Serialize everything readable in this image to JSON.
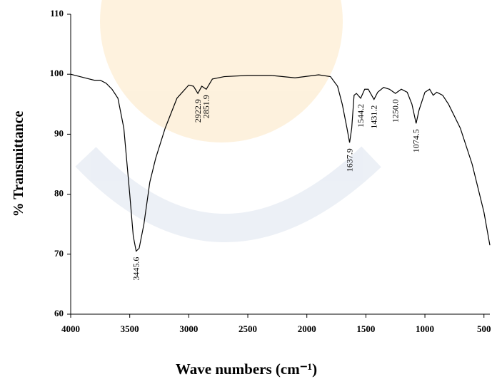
{
  "chart_data": {
    "type": "line",
    "xlabel": "Wave numbers (cm⁻¹)",
    "ylabel": "% Transmittance",
    "xlim": [
      4000,
      450
    ],
    "xticks": [
      4000,
      3500,
      3000,
      2500,
      2000,
      1500,
      1000,
      500
    ],
    "ylim": [
      60,
      110
    ],
    "yticks": [
      60,
      70,
      80,
      90,
      100,
      110
    ],
    "color": "#000000",
    "x": [
      4000,
      3900,
      3800,
      3750,
      3700,
      3650,
      3600,
      3550,
      3500,
      3470,
      3445.6,
      3420,
      3380,
      3330,
      3280,
      3200,
      3100,
      3000,
      2960,
      2922.9,
      2890,
      2851.9,
      2800,
      2700,
      2500,
      2300,
      2100,
      1900,
      1800,
      1740,
      1700,
      1660,
      1637.9,
      1620,
      1600,
      1580,
      1544.2,
      1510,
      1480,
      1431.2,
      1400,
      1350,
      1300,
      1250,
      1200,
      1150,
      1110,
      1074.5,
      1050,
      1000,
      960,
      930,
      900,
      850,
      800,
      700,
      600,
      500,
      450
    ],
    "values": [
      100.0,
      99.5,
      99.0,
      99.0,
      98.5,
      97.5,
      96,
      91,
      80,
      73,
      70.5,
      71,
      75,
      82,
      86,
      91,
      96,
      98.2,
      98,
      96.8,
      98,
      97.5,
      99.2,
      99.6,
      99.8,
      99.8,
      99.4,
      99.9,
      99.6,
      98,
      95,
      91,
      88.6,
      91,
      96.5,
      96.8,
      96.0,
      97.5,
      97.5,
      95.8,
      97,
      97.8,
      97.5,
      96.8,
      97.5,
      97,
      95,
      91.8,
      94,
      97,
      97.5,
      96.5,
      97,
      96.5,
      95,
      91,
      85,
      77,
      71.5
    ],
    "annotations": [
      {
        "text": "3445.6",
        "x": 3445.6,
        "y": 70.5
      },
      {
        "text": "2922.9",
        "x": 2922.9,
        "y": 96.8
      },
      {
        "text": "2851.9",
        "x": 2851.9,
        "y": 97.5
      },
      {
        "text": "1637.9",
        "x": 1637.9,
        "y": 88.6
      },
      {
        "text": "1544.2",
        "x": 1544.2,
        "y": 96.0
      },
      {
        "text": "1431.2",
        "x": 1431.2,
        "y": 95.8
      },
      {
        "text": "1250.0",
        "x": 1250.0,
        "y": 96.8
      },
      {
        "text": "1074.5",
        "x": 1074.5,
        "y": 91.8
      }
    ]
  }
}
